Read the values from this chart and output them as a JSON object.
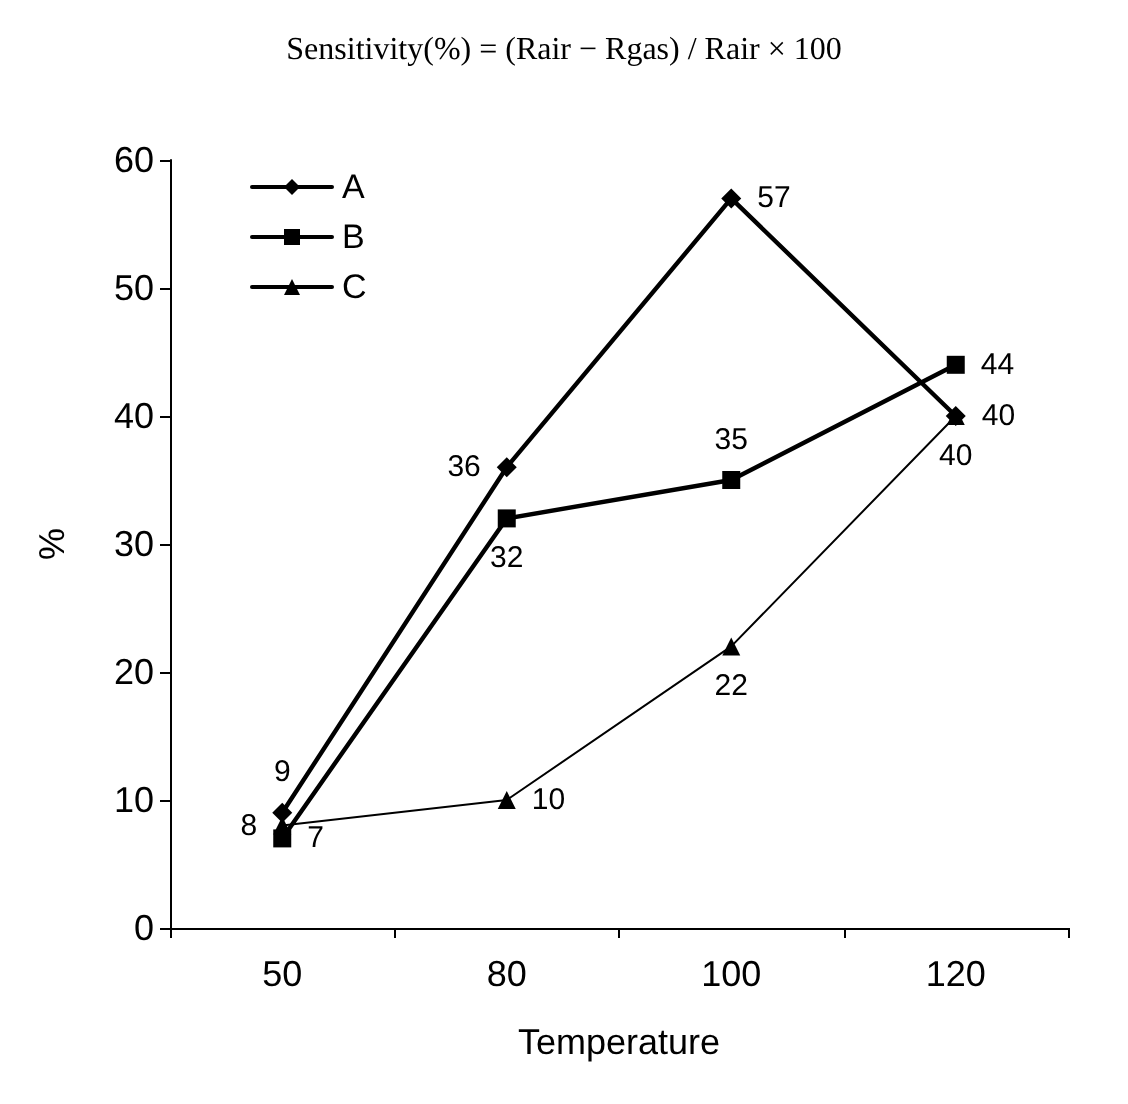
{
  "chart_data": {
    "type": "line",
    "title": "Sensitivity(%) = (Rair − Rgas) / Rair × 100",
    "xlabel": "Temperature",
    "ylabel": "%",
    "categories": [
      "50",
      "80",
      "100",
      "120"
    ],
    "series": [
      {
        "name": "A",
        "color": "#000000",
        "values": [
          9,
          36,
          57,
          40
        ],
        "marker": "diamond"
      },
      {
        "name": "B",
        "color": "#000000",
        "values": [
          7,
          32,
          35,
          44
        ],
        "marker": "square"
      },
      {
        "name": "C",
        "color": "#000000",
        "values": [
          8,
          10,
          22,
          40
        ],
        "marker": "triangle"
      }
    ],
    "ylim": [
      0,
      60
    ],
    "yticks": [
      0,
      10,
      20,
      30,
      40,
      50,
      60
    ],
    "grid": false,
    "legend": "top left",
    "data_labels": true,
    "line_style": "solid"
  }
}
